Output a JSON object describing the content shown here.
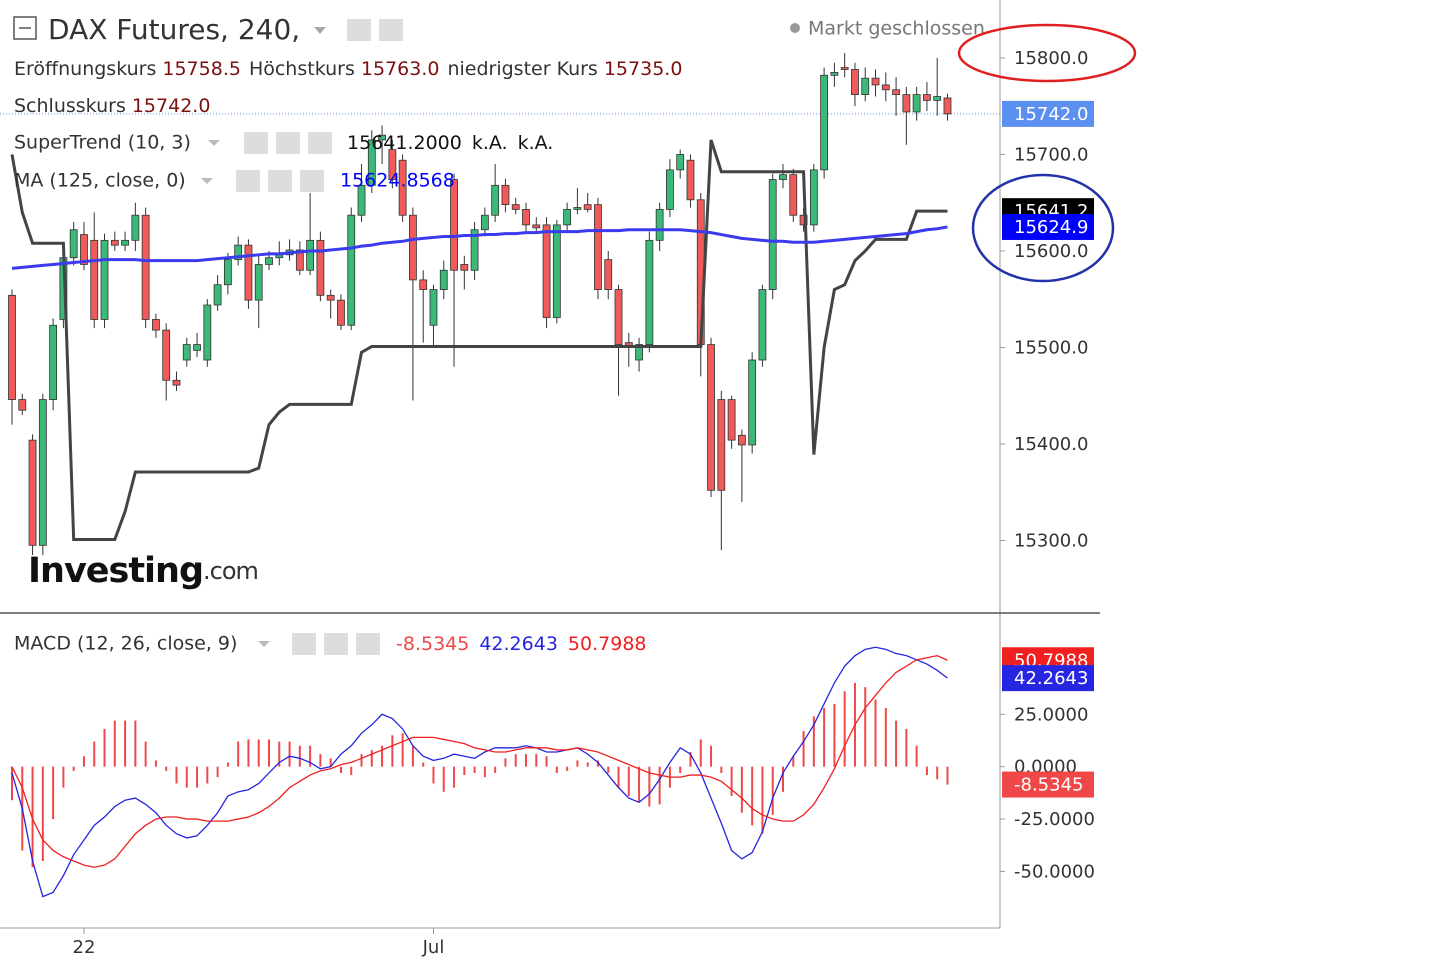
{
  "chart_data": {
    "type": "candlestick",
    "title": "DAX Futures, 240,",
    "status": "Markt geschlossen",
    "watermark": [
      "Investing",
      ".com"
    ],
    "ohlc_legend": [
      {
        "label": "Eröffnungskurs",
        "value": "15758.5"
      },
      {
        "label": "Höchstkurs",
        "value": "15763.0"
      },
      {
        "label": "niedrigster Kurs",
        "value": "15735.0"
      },
      {
        "label": "Schlusskurs",
        "value": "15742.0"
      }
    ],
    "categories": [
      null,
      null,
      null,
      null,
      null,
      null,
      null,
      "22",
      null,
      null,
      null,
      null,
      null,
      null,
      null,
      null,
      null,
      null,
      null,
      null,
      null,
      null,
      null,
      null,
      null,
      null,
      null,
      null,
      null,
      null,
      null,
      null,
      null,
      null,
      null,
      null,
      null,
      null,
      null,
      null,
      null,
      "Jul",
      null,
      null,
      null,
      null,
      null,
      null,
      null,
      null,
      null,
      null,
      null,
      null,
      null,
      null,
      null,
      null,
      null,
      null,
      null,
      null,
      null,
      null,
      null,
      null,
      null,
      null,
      null,
      null,
      null,
      null,
      null,
      null,
      null,
      null,
      null,
      null,
      null,
      null,
      null,
      null,
      null,
      null,
      null,
      null,
      null,
      null,
      null,
      null,
      null,
      null
    ],
    "up_color": "#3cb878",
    "down_color": "#ef5b5b",
    "ylim": [
      15228,
      15860
    ],
    "yticks": [
      {
        "value": 15300,
        "label": "15300.0"
      },
      {
        "value": 15400,
        "label": "15400.0"
      },
      {
        "value": 15500,
        "label": "15500.0"
      },
      {
        "value": 15600,
        "label": "15600.0"
      },
      {
        "value": 15700,
        "label": "15700.0"
      },
      {
        "value": 15800,
        "label": "15800.0"
      }
    ],
    "close_badge": {
      "label": "15742.0",
      "color": "#5b8ff0"
    },
    "ohlc": [
      [
        15554,
        15560,
        15420,
        15446
      ],
      [
        15446,
        15452,
        15430,
        15435
      ],
      [
        15404,
        15410,
        15285,
        15295
      ],
      [
        15295,
        15452,
        15285,
        15446
      ],
      [
        15446,
        15530,
        15435,
        15523
      ],
      [
        15529,
        15600,
        15520,
        15593
      ],
      [
        15593,
        15630,
        15585,
        15622
      ],
      [
        15617,
        15630,
        15580,
        15586
      ],
      [
        15611,
        15640,
        15520,
        15529
      ],
      [
        15529,
        15618,
        15520,
        15611
      ],
      [
        15611,
        15620,
        15600,
        15606
      ],
      [
        15606,
        15620,
        15600,
        15611
      ],
      [
        15611,
        15650,
        15600,
        15637
      ],
      [
        15637,
        15645,
        15520,
        15529
      ],
      [
        15529,
        15535,
        15510,
        15518
      ],
      [
        15518,
        15525,
        15445,
        15466
      ],
      [
        15466,
        15475,
        15455,
        15461
      ],
      [
        15487,
        15510,
        15480,
        15503
      ],
      [
        15497,
        15515,
        15490,
        15503
      ],
      [
        15487,
        15550,
        15480,
        15544
      ],
      [
        15544,
        15575,
        15538,
        15565
      ],
      [
        15565,
        15598,
        15555,
        15591
      ],
      [
        15591,
        15615,
        15585,
        15606
      ],
      [
        15606,
        15612,
        15540,
        15549
      ],
      [
        15549,
        15595,
        15520,
        15586
      ],
      [
        15586,
        15600,
        15580,
        15593
      ],
      [
        15593,
        15610,
        15585,
        15596
      ],
      [
        15596,
        15612,
        15590,
        15601
      ],
      [
        15601,
        15610,
        15575,
        15580
      ],
      [
        15580,
        15660,
        15575,
        15611
      ],
      [
        15611,
        15620,
        15548,
        15554
      ],
      [
        15554,
        15560,
        15530,
        15549
      ],
      [
        15549,
        15555,
        15518,
        15523
      ],
      [
        15523,
        15645,
        15518,
        15637
      ],
      [
        15637,
        15690,
        15630,
        15668
      ],
      [
        15668,
        15725,
        15660,
        15715
      ],
      [
        15715,
        15730,
        15690,
        15720
      ],
      [
        15705,
        15715,
        15665,
        15674
      ],
      [
        15694,
        15700,
        15630,
        15637
      ],
      [
        15637,
        15645,
        15445,
        15570
      ],
      [
        15570,
        15580,
        15505,
        15560
      ],
      [
        15523,
        15565,
        15500,
        15560
      ],
      [
        15560,
        15590,
        15550,
        15580
      ],
      [
        15674,
        15680,
        15480,
        15580
      ],
      [
        15586,
        15595,
        15560,
        15580
      ],
      [
        15580,
        15630,
        15570,
        15622
      ],
      [
        15622,
        15645,
        15615,
        15637
      ],
      [
        15637,
        15690,
        15630,
        15668
      ],
      [
        15668,
        15675,
        15640,
        15648
      ],
      [
        15648,
        15655,
        15638,
        15643
      ],
      [
        15643,
        15650,
        15620,
        15627
      ],
      [
        15627,
        15635,
        15618,
        15624
      ],
      [
        15627,
        15635,
        15520,
        15531
      ],
      [
        15531,
        15632,
        15525,
        15627
      ],
      [
        15627,
        15650,
        15620,
        15643
      ],
      [
        15643,
        15665,
        15638,
        15645
      ],
      [
        15648,
        15660,
        15640,
        15643
      ],
      [
        15648,
        15655,
        15550,
        15560
      ],
      [
        15591,
        15600,
        15550,
        15560
      ],
      [
        15560,
        15565,
        15450,
        15503
      ],
      [
        15505,
        15515,
        15480,
        15502
      ],
      [
        15487,
        15510,
        15475,
        15503
      ],
      [
        15503,
        15620,
        15495,
        15611
      ],
      [
        15611,
        15650,
        15600,
        15643
      ],
      [
        15643,
        15695,
        15635,
        15684
      ],
      [
        15684,
        15705,
        15675,
        15700
      ],
      [
        15694,
        15700,
        15645,
        15653
      ],
      [
        15653,
        15660,
        15470,
        15503
      ],
      [
        15503,
        15510,
        15345,
        15352
      ],
      [
        15446,
        15455,
        15290,
        15352
      ],
      [
        15446,
        15450,
        15395,
        15404
      ],
      [
        15409,
        15415,
        15340,
        15399
      ],
      [
        15399,
        15495,
        15390,
        15487
      ],
      [
        15487,
        15565,
        15480,
        15560
      ],
      [
        15560,
        15680,
        15550,
        15674
      ],
      [
        15674,
        15690,
        15665,
        15679
      ],
      [
        15679,
        15685,
        15630,
        15637
      ],
      [
        15637,
        15645,
        15620,
        15627
      ],
      [
        15627,
        15690,
        15620,
        15684
      ],
      [
        15684,
        15790,
        15675,
        15782
      ],
      [
        15782,
        15795,
        15770,
        15785
      ],
      [
        15790,
        15805,
        15780,
        15788
      ],
      [
        15788,
        15795,
        15750,
        15762
      ],
      [
        15762,
        15790,
        15755,
        15779
      ],
      [
        15779,
        15788,
        15760,
        15772
      ],
      [
        15772,
        15785,
        15755,
        15767
      ],
      [
        15767,
        15780,
        15740,
        15762
      ],
      [
        15762,
        15770,
        15710,
        15744
      ],
      [
        15744,
        15770,
        15735,
        15762
      ],
      [
        15762,
        15775,
        15745,
        15756
      ],
      [
        15756,
        15800,
        15740,
        15760
      ],
      [
        15758.5,
        15763,
        15735,
        15742
      ]
    ],
    "overlays": [
      {
        "name": "SuperTrend (10, 3)",
        "legend_value": "15641.2000",
        "legend_extra": [
          "k.A.",
          "k.A."
        ],
        "color": "#444444",
        "badge_color": "#000000",
        "values": [
          15700,
          15640,
          15608,
          15608,
          15608,
          15608,
          15301,
          15301,
          15301,
          15301,
          15301,
          15330,
          15371,
          15371,
          15371,
          15371,
          15371,
          15371,
          15371,
          15371,
          15371,
          15371,
          15371,
          15371,
          15375,
          15420,
          15433,
          15441,
          15441,
          15441,
          15441,
          15441,
          15441,
          15441,
          15495,
          15501,
          15501,
          15501,
          15501,
          15501,
          15501,
          15501,
          15501,
          15501,
          15501,
          15501,
          15501,
          15501,
          15501,
          15501,
          15501,
          15501,
          15501,
          15501,
          15501,
          15501,
          15501,
          15501,
          15501,
          15501,
          15501,
          15501,
          15501,
          15501,
          15501,
          15501,
          15501,
          15501,
          15715,
          15682,
          15682,
          15682,
          15682,
          15682,
          15682,
          15682,
          15682,
          15682,
          15389,
          15500,
          15560,
          15565,
          15590,
          15600,
          15612,
          15612,
          15612,
          15612,
          15641.2,
          15641.2,
          15641.2,
          15641.2
        ]
      },
      {
        "name": "MA (125, close, 0)",
        "color": "#3a3aee",
        "badge_color": "#0000ff",
        "badge_label": "15624.9",
        "values": [
          15582,
          15583,
          15584,
          15585,
          15586,
          15587,
          15588,
          15589,
          15590,
          15591,
          15591,
          15591,
          15591,
          15590,
          15590,
          15590,
          15590,
          15590,
          15590,
          15591,
          15592,
          15593,
          15594,
          15595,
          15596,
          15597,
          15597,
          15598,
          15599,
          15600,
          15600,
          15601,
          15602,
          15603,
          15605,
          15606,
          15608,
          15609,
          15610,
          15612,
          15613,
          15614,
          15615,
          15615,
          15616,
          15616,
          15617,
          15617,
          15618,
          15618,
          15619,
          15619,
          15620,
          15620,
          15620,
          15620,
          15621,
          15621,
          15621,
          15621,
          15622,
          15622,
          15622,
          15622,
          15622,
          15622,
          15621,
          15620,
          15619,
          15617,
          15615,
          15613,
          15612,
          15611,
          15610,
          15610,
          15609,
          15609,
          15609,
          15610,
          15611,
          15612,
          15613,
          15614,
          15615,
          15616,
          15617,
          15618,
          15620,
          15622,
          15623,
          15624.8568
        ]
      }
    ],
    "macd": {
      "title": "MACD (12, 26, close, 9)",
      "ylim": [
        -77,
        72.4
      ],
      "yticks": [
        {
          "value": -50,
          "label": "-50.0000"
        },
        {
          "value": -25,
          "label": "-25.0000"
        },
        {
          "value": 0,
          "label": "0.0000"
        },
        {
          "value": 25,
          "label": "25.0000"
        }
      ],
      "histogram": {
        "color": "#f04848",
        "values": [
          -16,
          -40,
          -48,
          -45,
          -25,
          -10,
          -2,
          5,
          12,
          18,
          22,
          22,
          22,
          12,
          3,
          -2,
          -8,
          -10,
          -10,
          -8,
          -5,
          2,
          12,
          13,
          13,
          13,
          12,
          12,
          10,
          10,
          6,
          4,
          -3,
          -4,
          6,
          8,
          10,
          15,
          16,
          10,
          2,
          -8,
          -12,
          -10,
          -4,
          -3,
          -5,
          -3,
          4,
          6,
          6,
          6,
          5,
          -3,
          -2,
          3,
          2,
          3,
          -3,
          -10,
          -14,
          -17,
          -19,
          -18,
          -10,
          -3,
          7,
          13,
          10,
          -3,
          -14,
          -22,
          -28,
          -32,
          -23,
          -12,
          5,
          17,
          24,
          28,
          30,
          36,
          40,
          38,
          32,
          28,
          22,
          18,
          10,
          -4,
          -6,
          -8.5345
        ]
      },
      "series": [
        {
          "color": "#2626e0",
          "values": [
            -3,
            -20,
            -45,
            -62,
            -60,
            -52,
            -42,
            -35,
            -28,
            -24,
            -19,
            -16,
            -15,
            -18,
            -22,
            -28,
            -32,
            -34,
            -33,
            -28,
            -22,
            -14,
            -12,
            -11,
            -8,
            -3,
            2,
            5,
            4,
            2,
            -1,
            0,
            6,
            10,
            16,
            20,
            25,
            23,
            18,
            10,
            5,
            3,
            4,
            6,
            5,
            4,
            7,
            9,
            9,
            9,
            10,
            9,
            7,
            7,
            8,
            9,
            6,
            2,
            -4,
            -10,
            -15,
            -17,
            -13,
            -6,
            2,
            9,
            6,
            -3,
            -15,
            -27,
            -40,
            -44,
            -41,
            -31,
            -15,
            -3,
            5,
            12,
            20,
            30,
            40,
            48,
            53,
            56,
            57,
            56,
            54,
            53,
            51,
            49,
            46,
            42.2643
          ]
        },
        {
          "color": "#f02020",
          "values": [
            0,
            -10,
            -25,
            -35,
            -40,
            -43,
            -45,
            -47,
            -48,
            -47,
            -44,
            -38,
            -32,
            -28,
            -25,
            -24,
            -24,
            -25,
            -25,
            -26,
            -26,
            -26,
            -25,
            -24,
            -22,
            -19,
            -15,
            -10,
            -7,
            -4,
            -2,
            -1,
            1,
            2,
            4,
            6,
            8,
            10,
            12,
            14,
            14,
            14,
            13,
            12,
            11,
            9,
            8,
            7,
            7,
            8,
            9,
            9,
            9,
            8,
            8,
            9,
            8,
            7,
            5,
            3,
            1,
            -1,
            -3,
            -4,
            -5,
            -5,
            -4,
            -4,
            -5,
            -7,
            -11,
            -15,
            -20,
            -23,
            -25,
            -26,
            -26,
            -23,
            -18,
            -10,
            -1,
            10,
            20,
            28,
            34,
            40,
            45,
            48,
            51,
            52,
            53,
            50.7988
          ]
        }
      ]
    }
  }
}
